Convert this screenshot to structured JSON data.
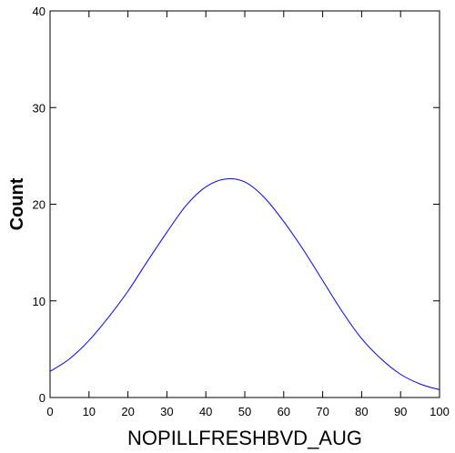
{
  "chart_data": {
    "type": "line",
    "xlabel": "NOPILLFRESHBVD_AUG",
    "ylabel": "Count",
    "xlim": [
      0,
      100
    ],
    "ylim": [
      0,
      40
    ],
    "x_ticks": [
      0,
      10,
      20,
      30,
      40,
      50,
      60,
      70,
      80,
      90,
      100
    ],
    "y_ticks": [
      0,
      10,
      20,
      30,
      40
    ],
    "grid": false,
    "series": [
      {
        "color": "#0000ff",
        "x": [
          0,
          5,
          10,
          15,
          20,
          25,
          30,
          35,
          40,
          45,
          50,
          55,
          60,
          65,
          70,
          75,
          80,
          85,
          90,
          95,
          100
        ],
        "y": [
          2.7,
          4.0,
          5.9,
          8.3,
          11.0,
          14.1,
          17.1,
          19.9,
          21.8,
          22.6,
          22.3,
          20.7,
          18.2,
          15.3,
          12.1,
          8.9,
          6.1,
          4.0,
          2.4,
          1.4,
          0.8
        ]
      }
    ]
  }
}
